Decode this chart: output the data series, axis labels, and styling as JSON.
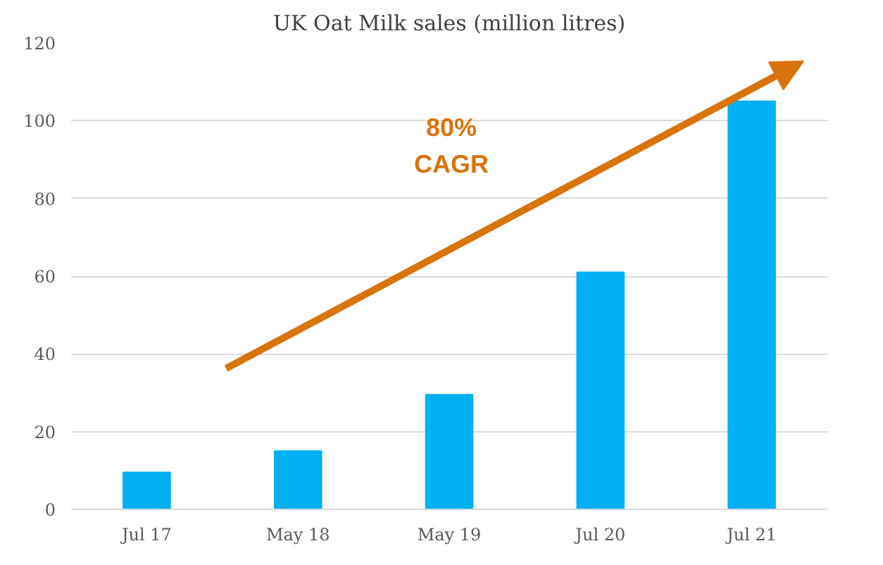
{
  "chart_data": {
    "type": "bar",
    "title": "UK Oat Milk sales (million litres)",
    "categories": [
      "Jul 17",
      "May 18",
      "May 19",
      "Jul 20",
      "Jul 21"
    ],
    "values": [
      9.5,
      15,
      29.5,
      61,
      105
    ],
    "color": "#00b0f0",
    "ylim": [
      0,
      120
    ],
    "yticks": [
      0,
      20,
      40,
      60,
      80,
      100,
      120
    ],
    "grid": "y",
    "annotations": [
      "80%\nCAGR"
    ]
  }
}
